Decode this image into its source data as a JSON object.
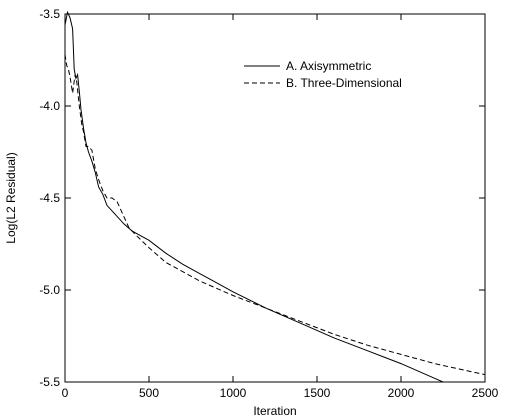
{
  "chart_data": {
    "type": "line",
    "title": "",
    "xlabel": "Iteration",
    "ylabel": "Log(L2 Residual)",
    "xlim": [
      0,
      2500
    ],
    "ylim": [
      -5.5,
      -3.5
    ],
    "xticks": [
      0,
      500,
      1000,
      1500,
      2000,
      2500
    ],
    "yticks": [
      -3.5,
      -4.0,
      -4.5,
      -5.0,
      -5.5
    ],
    "ytick_labels": [
      "-3.5",
      "-4.0",
      "-4.5",
      "-5.0",
      "-5.5"
    ],
    "grid": false,
    "legend_position": "top-right",
    "series": [
      {
        "name": "A. Axisymmetric",
        "style": "solid",
        "color": "#000000",
        "points": [
          [
            0,
            -3.56
          ],
          [
            15,
            -3.49
          ],
          [
            30,
            -3.52
          ],
          [
            45,
            -3.58
          ],
          [
            55,
            -3.8
          ],
          [
            65,
            -3.85
          ],
          [
            75,
            -3.83
          ],
          [
            85,
            -3.92
          ],
          [
            95,
            -4.02
          ],
          [
            110,
            -4.12
          ],
          [
            125,
            -4.2
          ],
          [
            140,
            -4.25
          ],
          [
            160,
            -4.3
          ],
          [
            180,
            -4.36
          ],
          [
            200,
            -4.44
          ],
          [
            225,
            -4.48
          ],
          [
            250,
            -4.54
          ],
          [
            300,
            -4.59
          ],
          [
            350,
            -4.64
          ],
          [
            400,
            -4.68
          ],
          [
            500,
            -4.73
          ],
          [
            600,
            -4.8
          ],
          [
            700,
            -4.86
          ],
          [
            800,
            -4.91
          ],
          [
            900,
            -4.96
          ],
          [
            1000,
            -5.01
          ],
          [
            1200,
            -5.1
          ],
          [
            1400,
            -5.18
          ],
          [
            1600,
            -5.26
          ],
          [
            1800,
            -5.33
          ],
          [
            2000,
            -5.4
          ],
          [
            2200,
            -5.48
          ],
          [
            2250,
            -5.5
          ]
        ]
      },
      {
        "name": "B. Three-Dimensional",
        "style": "dashed",
        "color": "#000000",
        "points": [
          [
            0,
            -3.72
          ],
          [
            10,
            -3.78
          ],
          [
            20,
            -3.8
          ],
          [
            30,
            -3.84
          ],
          [
            45,
            -3.93
          ],
          [
            60,
            -3.83
          ],
          [
            70,
            -3.87
          ],
          [
            85,
            -4.0
          ],
          [
            100,
            -4.1
          ],
          [
            110,
            -4.14
          ],
          [
            125,
            -4.22
          ],
          [
            140,
            -4.22
          ],
          [
            160,
            -4.24
          ],
          [
            180,
            -4.34
          ],
          [
            200,
            -4.4
          ],
          [
            225,
            -4.46
          ],
          [
            250,
            -4.5
          ],
          [
            280,
            -4.5
          ],
          [
            310,
            -4.52
          ],
          [
            340,
            -4.58
          ],
          [
            380,
            -4.66
          ],
          [
            420,
            -4.7
          ],
          [
            500,
            -4.77
          ],
          [
            600,
            -4.85
          ],
          [
            700,
            -4.9
          ],
          [
            800,
            -4.95
          ],
          [
            900,
            -4.99
          ],
          [
            1000,
            -5.03
          ],
          [
            1200,
            -5.1
          ],
          [
            1400,
            -5.17
          ],
          [
            1600,
            -5.24
          ],
          [
            1800,
            -5.3
          ],
          [
            2000,
            -5.35
          ],
          [
            2200,
            -5.4
          ],
          [
            2400,
            -5.44
          ],
          [
            2500,
            -5.46
          ]
        ]
      }
    ]
  }
}
